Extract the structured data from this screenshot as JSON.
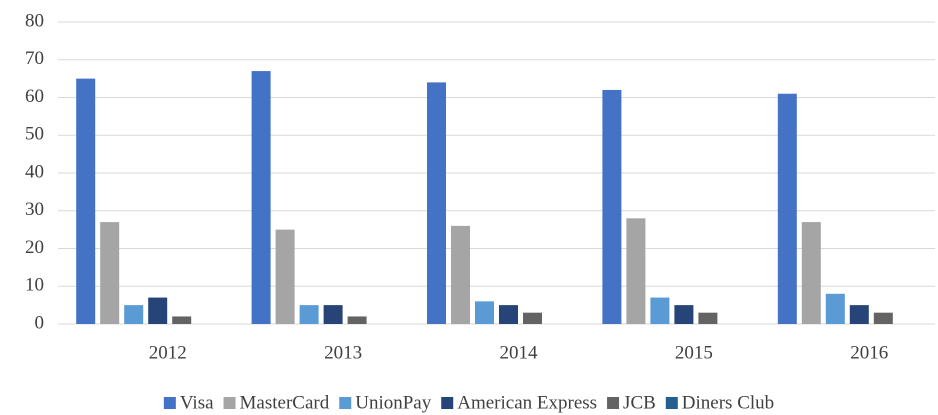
{
  "chart_data": {
    "type": "bar",
    "categories": [
      "2012",
      "2013",
      "2014",
      "2015",
      "2016"
    ],
    "series": [
      {
        "name": "Visa",
        "color": "#4472c4",
        "values": [
          65,
          67,
          64,
          62,
          61
        ]
      },
      {
        "name": "MasterCard",
        "color": "#a5a5a5",
        "values": [
          27,
          25,
          26,
          28,
          27
        ]
      },
      {
        "name": "UnionPay",
        "color": "#5b9bd5",
        "values": [
          5,
          5,
          6,
          7,
          8
        ]
      },
      {
        "name": "American Express",
        "color": "#264478",
        "values": [
          7,
          5,
          5,
          5,
          5
        ]
      },
      {
        "name": "JCB",
        "color": "#636363",
        "values": [
          2,
          2,
          3,
          3,
          3
        ]
      },
      {
        "name": "Diners Club",
        "color": "#255e91",
        "values": [
          0,
          0,
          0,
          0,
          0
        ]
      }
    ],
    "ylim": [
      0,
      80
    ],
    "yticks": [
      0,
      10,
      20,
      30,
      40,
      50,
      60,
      70,
      80
    ],
    "grid": true,
    "legend": "bottom"
  }
}
